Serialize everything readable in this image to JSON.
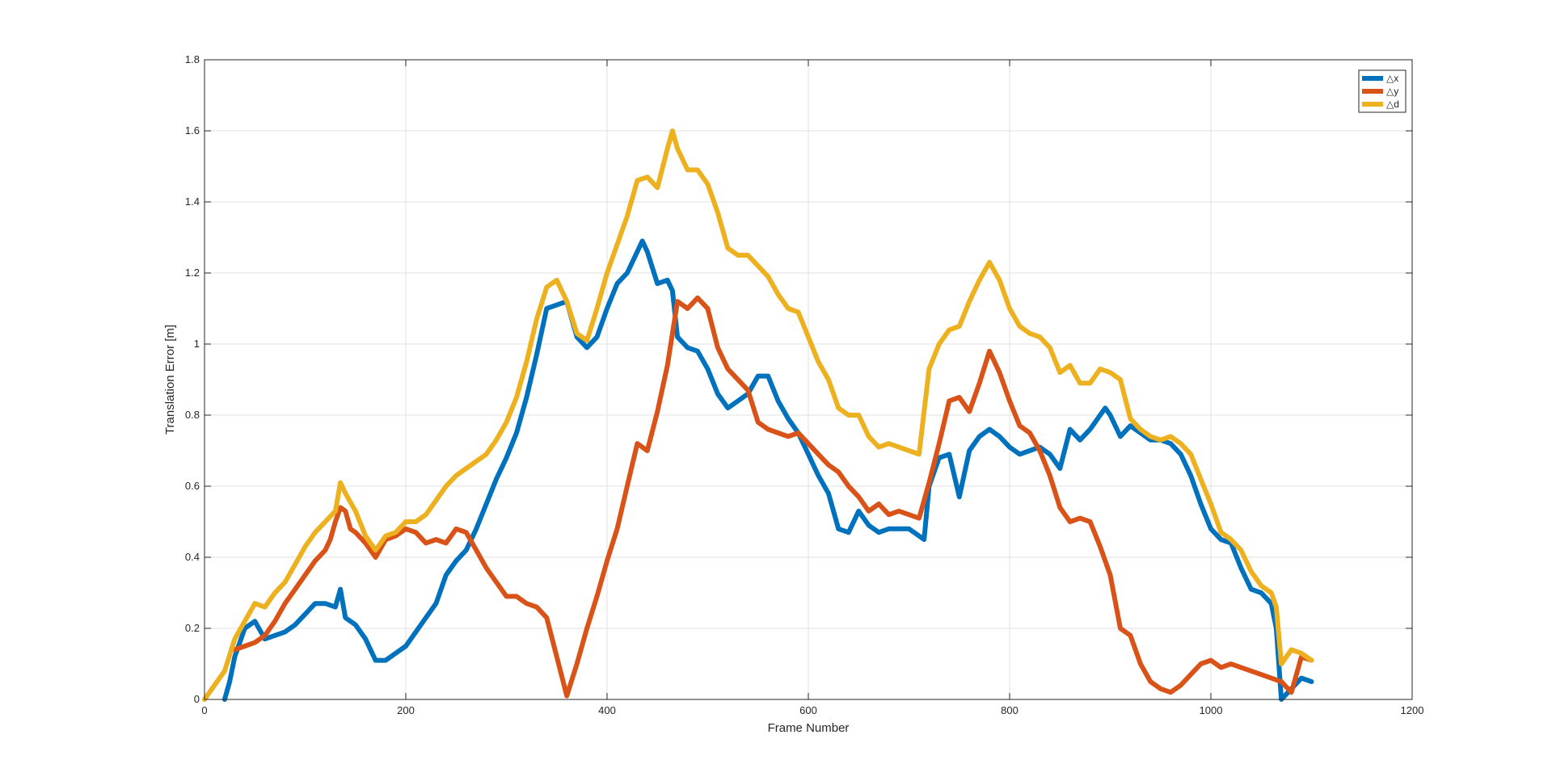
{
  "chart_data": {
    "type": "line",
    "title": "",
    "xlabel": "Frame Number",
    "ylabel": "Translation Error [m]",
    "xlim": [
      0,
      1200
    ],
    "ylim": [
      0,
      1.8
    ],
    "xticks": [
      0,
      200,
      400,
      600,
      800,
      1000,
      1200
    ],
    "xtick_labels": [
      "0",
      "200",
      "400",
      "600",
      "800",
      "1000",
      "1200"
    ],
    "yticks": [
      0,
      0.2,
      0.4,
      0.6,
      0.8,
      1,
      1.2,
      1.4,
      1.6,
      1.8
    ],
    "ytick_labels": [
      "0",
      "0.2",
      "0.4",
      "0.6",
      "0.8",
      "1",
      "1.2",
      "1.4",
      "1.6",
      "1.8"
    ],
    "grid": true,
    "legend_position": "top-right",
    "series": [
      {
        "name": "△x",
        "color": "#0072BD",
        "x": [
          20,
          25,
          30,
          40,
          50,
          60,
          70,
          80,
          90,
          100,
          110,
          120,
          130,
          135,
          140,
          150,
          160,
          170,
          180,
          190,
          200,
          210,
          220,
          230,
          240,
          250,
          260,
          270,
          280,
          290,
          300,
          310,
          320,
          330,
          340,
          350,
          360,
          370,
          380,
          390,
          400,
          410,
          420,
          430,
          435,
          440,
          450,
          460,
          465,
          470,
          480,
          490,
          500,
          510,
          520,
          530,
          540,
          550,
          560,
          570,
          580,
          590,
          600,
          610,
          620,
          630,
          640,
          650,
          660,
          670,
          680,
          690,
          700,
          710,
          715,
          720,
          730,
          740,
          750,
          760,
          770,
          780,
          790,
          800,
          810,
          820,
          830,
          840,
          850,
          860,
          870,
          880,
          890,
          895,
          900,
          910,
          920,
          930,
          940,
          950,
          960,
          970,
          980,
          990,
          1000,
          1010,
          1020,
          1030,
          1040,
          1050,
          1060,
          1065,
          1070,
          1080,
          1090,
          1100
        ],
        "values": [
          0.0,
          0.05,
          0.12,
          0.2,
          0.22,
          0.17,
          0.18,
          0.19,
          0.21,
          0.24,
          0.27,
          0.27,
          0.26,
          0.31,
          0.23,
          0.21,
          0.17,
          0.11,
          0.11,
          0.13,
          0.15,
          0.19,
          0.23,
          0.27,
          0.35,
          0.39,
          0.42,
          0.48,
          0.55,
          0.62,
          0.68,
          0.75,
          0.85,
          0.97,
          1.1,
          1.11,
          1.12,
          1.02,
          0.99,
          1.02,
          1.1,
          1.17,
          1.2,
          1.26,
          1.29,
          1.26,
          1.17,
          1.18,
          1.15,
          1.02,
          0.99,
          0.98,
          0.93,
          0.86,
          0.82,
          0.84,
          0.86,
          0.91,
          0.91,
          0.84,
          0.79,
          0.75,
          0.69,
          0.63,
          0.58,
          0.48,
          0.47,
          0.53,
          0.49,
          0.47,
          0.48,
          0.48,
          0.48,
          0.46,
          0.45,
          0.6,
          0.68,
          0.69,
          0.57,
          0.7,
          0.74,
          0.76,
          0.74,
          0.71,
          0.69,
          0.7,
          0.71,
          0.69,
          0.65,
          0.76,
          0.73,
          0.76,
          0.8,
          0.82,
          0.8,
          0.74,
          0.77,
          0.75,
          0.73,
          0.73,
          0.72,
          0.69,
          0.63,
          0.55,
          0.48,
          0.45,
          0.44,
          0.37,
          0.31,
          0.3,
          0.27,
          0.2,
          0.0,
          0.03,
          0.06,
          0.05
        ]
      },
      {
        "name": "△y",
        "color": "#D95319",
        "x": [
          30,
          40,
          50,
          60,
          70,
          80,
          90,
          100,
          110,
          120,
          125,
          130,
          135,
          140,
          145,
          150,
          160,
          170,
          180,
          190,
          200,
          210,
          220,
          230,
          240,
          250,
          260,
          270,
          280,
          290,
          300,
          310,
          320,
          330,
          340,
          350,
          360,
          370,
          380,
          390,
          400,
          410,
          420,
          430,
          440,
          450,
          460,
          470,
          480,
          490,
          500,
          510,
          520,
          530,
          540,
          550,
          560,
          570,
          580,
          590,
          600,
          610,
          620,
          630,
          640,
          650,
          660,
          670,
          680,
          690,
          700,
          710,
          720,
          730,
          740,
          750,
          760,
          770,
          780,
          790,
          800,
          810,
          820,
          830,
          840,
          850,
          860,
          870,
          880,
          890,
          900,
          910,
          920,
          930,
          940,
          950,
          960,
          970,
          980,
          990,
          1000,
          1010,
          1020,
          1030,
          1040,
          1050,
          1060,
          1070,
          1080,
          1090,
          1100
        ],
        "values": [
          0.14,
          0.15,
          0.16,
          0.18,
          0.22,
          0.27,
          0.31,
          0.35,
          0.39,
          0.42,
          0.45,
          0.5,
          0.54,
          0.53,
          0.48,
          0.47,
          0.44,
          0.4,
          0.45,
          0.46,
          0.48,
          0.47,
          0.44,
          0.45,
          0.44,
          0.48,
          0.47,
          0.42,
          0.37,
          0.33,
          0.29,
          0.29,
          0.27,
          0.26,
          0.23,
          0.12,
          0.01,
          0.1,
          0.2,
          0.29,
          0.39,
          0.48,
          0.6,
          0.72,
          0.7,
          0.81,
          0.94,
          1.12,
          1.1,
          1.13,
          1.1,
          0.99,
          0.93,
          0.9,
          0.87,
          0.78,
          0.76,
          0.75,
          0.74,
          0.75,
          0.72,
          0.69,
          0.66,
          0.64,
          0.6,
          0.57,
          0.53,
          0.55,
          0.52,
          0.53,
          0.52,
          0.51,
          0.61,
          0.72,
          0.84,
          0.85,
          0.81,
          0.89,
          0.98,
          0.92,
          0.84,
          0.77,
          0.75,
          0.7,
          0.63,
          0.54,
          0.5,
          0.51,
          0.5,
          0.43,
          0.35,
          0.2,
          0.18,
          0.1,
          0.05,
          0.03,
          0.02,
          0.04,
          0.07,
          0.1,
          0.11,
          0.09,
          0.1,
          0.09,
          0.08,
          0.07,
          0.06,
          0.05,
          0.02,
          0.12,
          0.11
        ]
      },
      {
        "name": "△d",
        "color": "#EDB120",
        "x": [
          0,
          10,
          20,
          30,
          40,
          50,
          60,
          70,
          80,
          90,
          100,
          110,
          120,
          130,
          135,
          140,
          150,
          160,
          170,
          180,
          190,
          200,
          210,
          220,
          230,
          240,
          250,
          260,
          270,
          280,
          290,
          300,
          310,
          320,
          330,
          340,
          350,
          360,
          370,
          380,
          390,
          400,
          410,
          420,
          430,
          440,
          450,
          460,
          465,
          470,
          480,
          490,
          500,
          510,
          520,
          530,
          540,
          550,
          560,
          570,
          580,
          590,
          600,
          610,
          620,
          630,
          640,
          650,
          660,
          670,
          680,
          690,
          700,
          710,
          720,
          730,
          740,
          750,
          760,
          770,
          780,
          790,
          800,
          810,
          820,
          830,
          840,
          850,
          860,
          870,
          880,
          890,
          900,
          910,
          920,
          930,
          940,
          950,
          960,
          970,
          980,
          990,
          1000,
          1010,
          1020,
          1030,
          1040,
          1050,
          1060,
          1065,
          1070,
          1080,
          1090,
          1100
        ],
        "values": [
          0.0,
          0.04,
          0.08,
          0.17,
          0.22,
          0.27,
          0.26,
          0.3,
          0.33,
          0.38,
          0.43,
          0.47,
          0.5,
          0.53,
          0.61,
          0.58,
          0.53,
          0.46,
          0.42,
          0.46,
          0.47,
          0.5,
          0.5,
          0.52,
          0.56,
          0.6,
          0.63,
          0.65,
          0.67,
          0.69,
          0.73,
          0.78,
          0.85,
          0.95,
          1.07,
          1.16,
          1.18,
          1.12,
          1.03,
          1.01,
          1.1,
          1.2,
          1.28,
          1.36,
          1.46,
          1.47,
          1.44,
          1.55,
          1.6,
          1.55,
          1.49,
          1.49,
          1.45,
          1.37,
          1.27,
          1.25,
          1.25,
          1.22,
          1.19,
          1.14,
          1.1,
          1.09,
          1.02,
          0.95,
          0.9,
          0.82,
          0.8,
          0.8,
          0.74,
          0.71,
          0.72,
          0.71,
          0.7,
          0.69,
          0.93,
          1.0,
          1.04,
          1.05,
          1.12,
          1.18,
          1.23,
          1.18,
          1.1,
          1.05,
          1.03,
          1.02,
          0.99,
          0.92,
          0.94,
          0.89,
          0.89,
          0.93,
          0.92,
          0.9,
          0.79,
          0.76,
          0.74,
          0.73,
          0.74,
          0.72,
          0.69,
          0.62,
          0.55,
          0.47,
          0.45,
          0.42,
          0.36,
          0.32,
          0.3,
          0.26,
          0.1,
          0.14,
          0.13,
          0.11
        ]
      }
    ]
  }
}
